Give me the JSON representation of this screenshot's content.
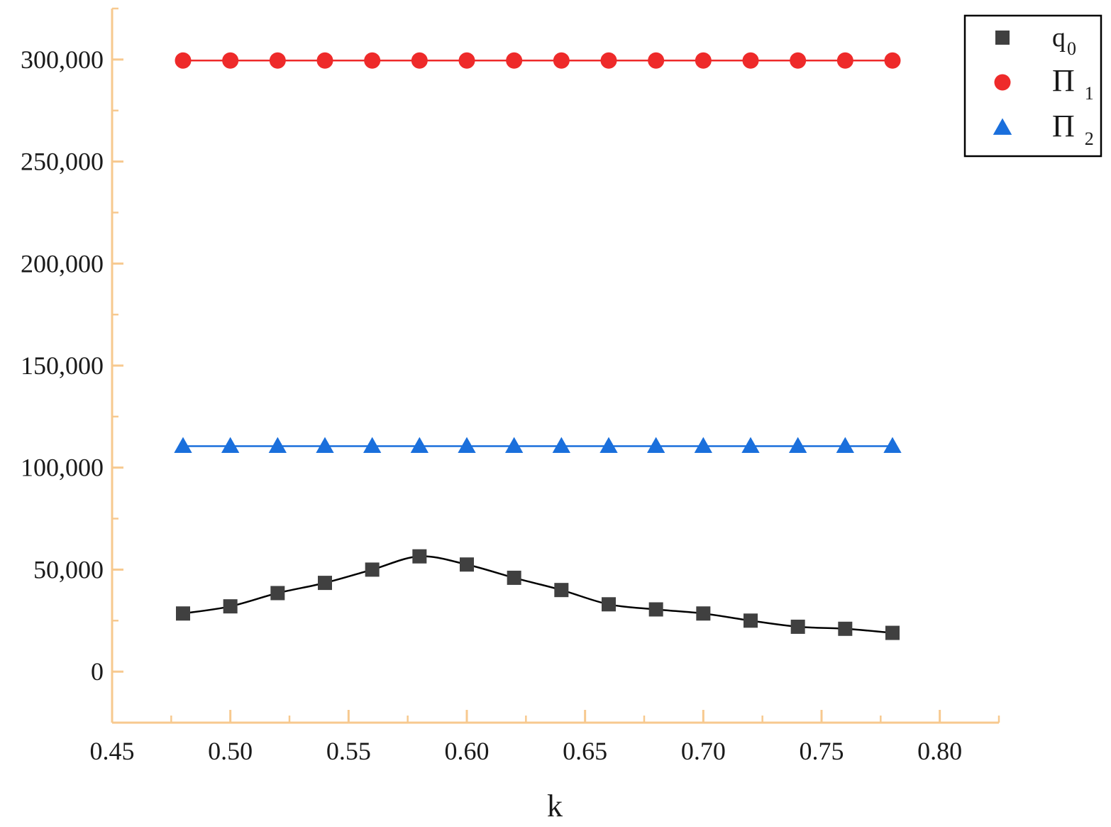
{
  "chart_data": {
    "type": "line",
    "xlabel": "k",
    "ylabel": "",
    "xlim": [
      0.45,
      0.825
    ],
    "ylim": [
      -25000,
      325000
    ],
    "x_ticks": [
      0.45,
      0.5,
      0.55,
      0.6,
      0.65,
      0.7,
      0.75,
      0.8
    ],
    "x_tick_labels": [
      "0.45",
      "0.50",
      "0.55",
      "0.60",
      "0.65",
      "0.70",
      "0.75",
      "0.80"
    ],
    "y_ticks": [
      0,
      50000,
      100000,
      150000,
      200000,
      250000,
      300000
    ],
    "y_tick_labels": [
      "0",
      "50,000",
      "100,000",
      "150,000",
      "200,000",
      "250,000",
      "300,000"
    ],
    "grid": false,
    "legend_position": "top-right",
    "axis_color": "#f7c98f",
    "series": [
      {
        "name": "q0",
        "legend_main": "q",
        "legend_sub": "0",
        "marker": "square",
        "color": "#404040",
        "line_color": "#000000",
        "x": [
          0.48,
          0.5,
          0.52,
          0.54,
          0.56,
          0.58,
          0.6,
          0.62,
          0.64,
          0.66,
          0.68,
          0.7,
          0.72,
          0.74,
          0.76,
          0.78
        ],
        "y": [
          28500,
          32000,
          38500,
          43500,
          50000,
          56500,
          52500,
          46000,
          40000,
          33000,
          30500,
          28500,
          25000,
          22000,
          21000,
          19000
        ]
      },
      {
        "name": "Π1",
        "legend_main": "Π",
        "legend_sub": "1",
        "marker": "circle",
        "color": "#ee2a2a",
        "line_color": "#ee2a2a",
        "x": [
          0.48,
          0.5,
          0.52,
          0.54,
          0.56,
          0.58,
          0.6,
          0.62,
          0.64,
          0.66,
          0.68,
          0.7,
          0.72,
          0.74,
          0.76,
          0.78
        ],
        "y": [
          299500,
          299500,
          299500,
          299500,
          299500,
          299500,
          299500,
          299500,
          299500,
          299500,
          299500,
          299500,
          299500,
          299500,
          299500,
          299500
        ]
      },
      {
        "name": "Π2",
        "legend_main": "Π",
        "legend_sub": "2",
        "marker": "triangle",
        "color": "#1a6fdc",
        "line_color": "#1a6fdc",
        "x": [
          0.48,
          0.5,
          0.52,
          0.54,
          0.56,
          0.58,
          0.6,
          0.62,
          0.64,
          0.66,
          0.68,
          0.7,
          0.72,
          0.74,
          0.76,
          0.78
        ],
        "y": [
          110500,
          110500,
          110500,
          110500,
          110500,
          110500,
          110500,
          110500,
          110500,
          110500,
          110500,
          110500,
          110500,
          110500,
          110500,
          110500
        ]
      }
    ]
  }
}
